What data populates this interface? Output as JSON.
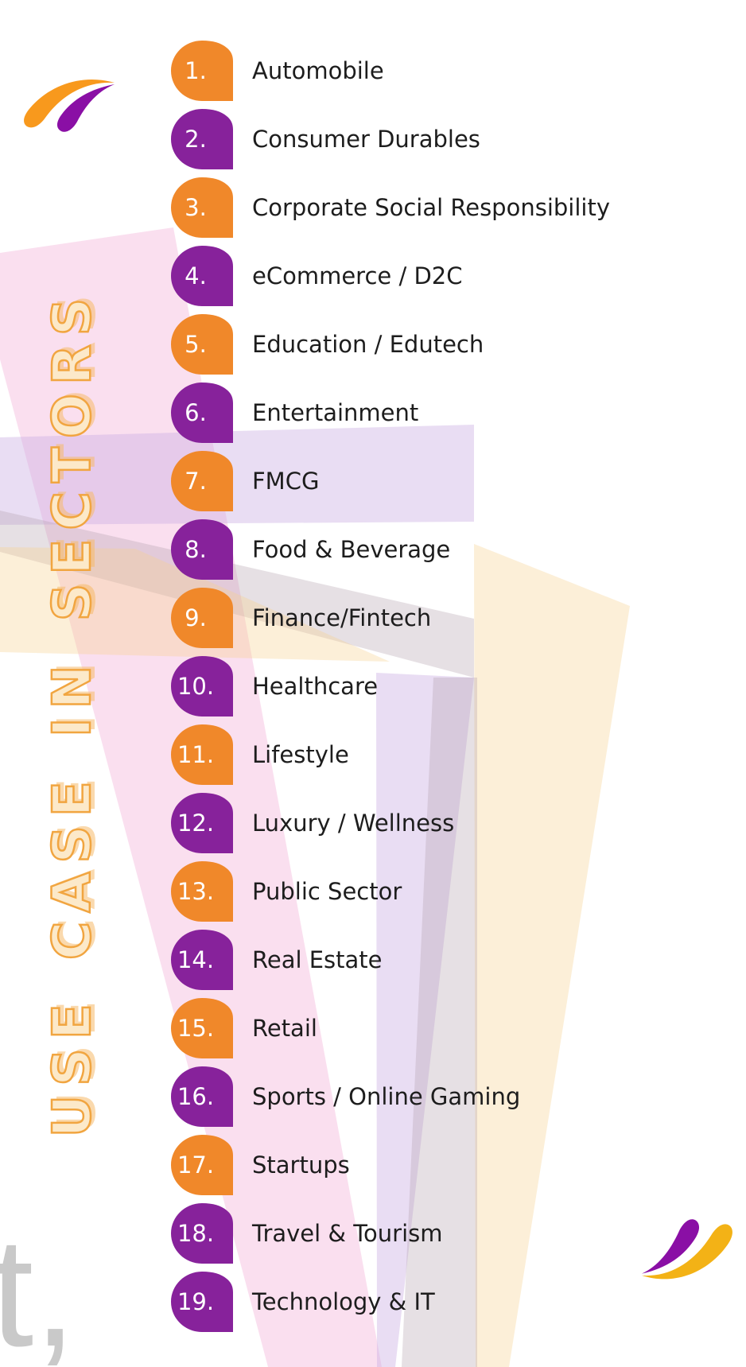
{
  "title": {
    "vertical_text": "USE CASE IN SECTORS"
  },
  "watermark": {
    "text": "t,"
  },
  "list": {
    "items": [
      {
        "number": "1.",
        "label": "Automobile",
        "color": "orange"
      },
      {
        "number": "2.",
        "label": "Consumer Durables",
        "color": "purple"
      },
      {
        "number": "3.",
        "label": "Corporate Social Responsibility",
        "color": "orange"
      },
      {
        "number": "4.",
        "label": "eCommerce / D2C",
        "color": "purple"
      },
      {
        "number": "5.",
        "label": "Education / Edutech",
        "color": "orange"
      },
      {
        "number": "6.",
        "label": "Entertainment",
        "color": "purple"
      },
      {
        "number": "7.",
        "label": "FMCG",
        "color": "orange"
      },
      {
        "number": "8.",
        "label": "Food & Beverage",
        "color": "purple"
      },
      {
        "number": "9.",
        "label": "Finance/Fintech",
        "color": "orange"
      },
      {
        "number": "10.",
        "label": "Healthcare",
        "color": "purple"
      },
      {
        "number": "11.",
        "label": "Lifestyle",
        "color": "orange"
      },
      {
        "number": "12.",
        "label": "Luxury / Wellness",
        "color": "purple"
      },
      {
        "number": "13.",
        "label": "Public Sector",
        "color": "orange"
      },
      {
        "number": "14.",
        "label": "Real Estate",
        "color": "purple"
      },
      {
        "number": "15.",
        "label": "Retail",
        "color": "orange"
      },
      {
        "number": "16.",
        "label": "Sports / Online Gaming",
        "color": "purple"
      },
      {
        "number": "17.",
        "label": "Startups",
        "color": "orange"
      },
      {
        "number": "18.",
        "label": "Travel & Tourism",
        "color": "purple"
      },
      {
        "number": "19.",
        "label": "Technology & IT",
        "color": "purple"
      }
    ]
  },
  "colors": {
    "badge_orange": "#F0882A",
    "badge_purple": "#87229B",
    "number_text": "#FFFFFF",
    "label_text": "#1D1D1D",
    "title_fill": "#FCE9C9",
    "title_outline": "#F1A540",
    "title_shadow": "rgba(245,185,105,0.55)",
    "watermark_gray": "#C9C9C9",
    "logo_orange": "#F8991D",
    "logo_purple": "#8A0FA5",
    "logo_yellow": "#F3B216",
    "bg_pink": "rgba(244,183,220,0.45)",
    "bg_lavender": "rgba(203,174,226,0.42)",
    "bg_gray": "rgba(176,160,172,0.32)",
    "bg_cream": "rgba(247,208,142,0.35)"
  },
  "icons": {
    "top_left": "brand-swoosh-orange-purple",
    "bottom_right": "brand-swoosh-purple-yellow"
  }
}
